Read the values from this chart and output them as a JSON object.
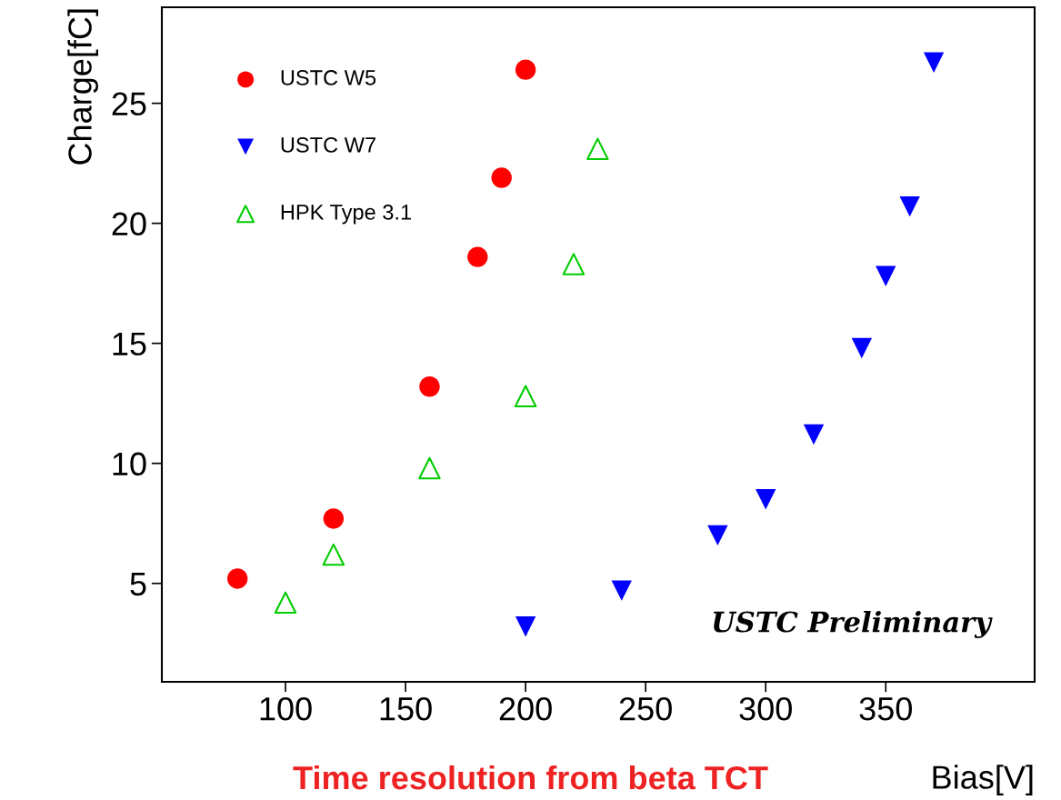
{
  "chart_data": {
    "type": "scatter",
    "xlabel": "Bias[V]",
    "ylabel": "Charge[fC]",
    "series": [
      {
        "name": "USTC W5",
        "color": "#ff0000",
        "marker": "circle",
        "x": [
          80,
          120,
          160,
          180,
          190,
          200
        ],
        "values": [
          5.2,
          7.7,
          13.2,
          18.6,
          21.9,
          26.4
        ]
      },
      {
        "name": "USTC W7",
        "color": "#0000ff",
        "marker": "triangle",
        "x": [
          200,
          240,
          280,
          300,
          320,
          340,
          350,
          360,
          370
        ],
        "values": [
          3.2,
          4.7,
          7.0,
          8.5,
          11.2,
          14.8,
          17.8,
          20.7,
          26.7
        ]
      },
      {
        "name": "HPK Type 3.1",
        "color": "#00cc00",
        "marker": "triangle",
        "x": [
          100,
          120,
          160,
          200,
          220,
          230
        ],
        "values": [
          4.2,
          6.2,
          9.8,
          12.8,
          18.3,
          23.1
        ]
      }
    ],
    "xlim": [
      48.5,
      412
    ],
    "ylim": [
      0.9,
      29
    ],
    "xticks": [
      100,
      150,
      200,
      250,
      300,
      350
    ],
    "yticks": [
      5,
      10,
      15,
      20,
      25
    ],
    "legend": "top left",
    "annotations": [
      "USTC Preliminary",
      "Time resolution from beta TCT"
    ]
  }
}
